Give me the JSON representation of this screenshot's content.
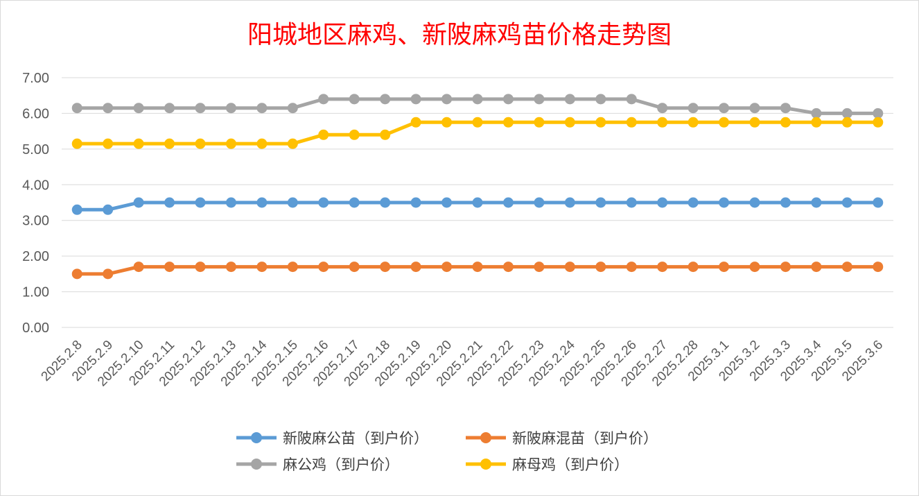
{
  "chart_data": {
    "type": "line",
    "title": "阳城地区麻鸡、新陂麻鸡苗价格走势图",
    "categories": [
      "2025.2.8",
      "2025.2.9",
      "2025.2.10",
      "2025.2.11",
      "2025.2.12",
      "2025.2.13",
      "2025.2.14",
      "2025.2.15",
      "2025.2.16",
      "2025.2.17",
      "2025.2.18",
      "2025.2.19",
      "2025.2.20",
      "2025.2.21",
      "2025.2.22",
      "2025.2.23",
      "2025.2.24",
      "2025.2.25",
      "2025.2.26",
      "2025.2.27",
      "2025.2.28",
      "2025.3.1",
      "2025.3.2",
      "2025.3.3",
      "2025.3.4",
      "2025.3.5",
      "2025.3.6"
    ],
    "ylim": [
      0,
      7
    ],
    "yticks": [
      "0.00",
      "1.00",
      "2.00",
      "3.00",
      "4.00",
      "5.00",
      "6.00",
      "7.00"
    ],
    "grid": true,
    "legend_position": "bottom",
    "series": [
      {
        "name": "新陂麻公苗（到户价）",
        "color": "#5b9bd5",
        "values": [
          3.3,
          3.3,
          3.5,
          3.5,
          3.5,
          3.5,
          3.5,
          3.5,
          3.5,
          3.5,
          3.5,
          3.5,
          3.5,
          3.5,
          3.5,
          3.5,
          3.5,
          3.5,
          3.5,
          3.5,
          3.5,
          3.5,
          3.5,
          3.5,
          3.5,
          3.5,
          3.5
        ]
      },
      {
        "name": "新陂麻混苗（到户价）",
        "color": "#ed7d31",
        "values": [
          1.5,
          1.5,
          1.7,
          1.7,
          1.7,
          1.7,
          1.7,
          1.7,
          1.7,
          1.7,
          1.7,
          1.7,
          1.7,
          1.7,
          1.7,
          1.7,
          1.7,
          1.7,
          1.7,
          1.7,
          1.7,
          1.7,
          1.7,
          1.7,
          1.7,
          1.7,
          1.7
        ]
      },
      {
        "name": "麻公鸡（到户价）",
        "color": "#a5a5a5",
        "values": [
          6.15,
          6.15,
          6.15,
          6.15,
          6.15,
          6.15,
          6.15,
          6.15,
          6.4,
          6.4,
          6.4,
          6.4,
          6.4,
          6.4,
          6.4,
          6.4,
          6.4,
          6.4,
          6.4,
          6.15,
          6.15,
          6.15,
          6.15,
          6.15,
          6.0,
          6.0,
          6.0
        ]
      },
      {
        "name": "麻母鸡（到户价）",
        "color": "#ffc000",
        "values": [
          5.15,
          5.15,
          5.15,
          5.15,
          5.15,
          5.15,
          5.15,
          5.15,
          5.4,
          5.4,
          5.4,
          5.75,
          5.75,
          5.75,
          5.75,
          5.75,
          5.75,
          5.75,
          5.75,
          5.75,
          5.75,
          5.75,
          5.75,
          5.75,
          5.75,
          5.75,
          5.75
        ]
      }
    ]
  }
}
